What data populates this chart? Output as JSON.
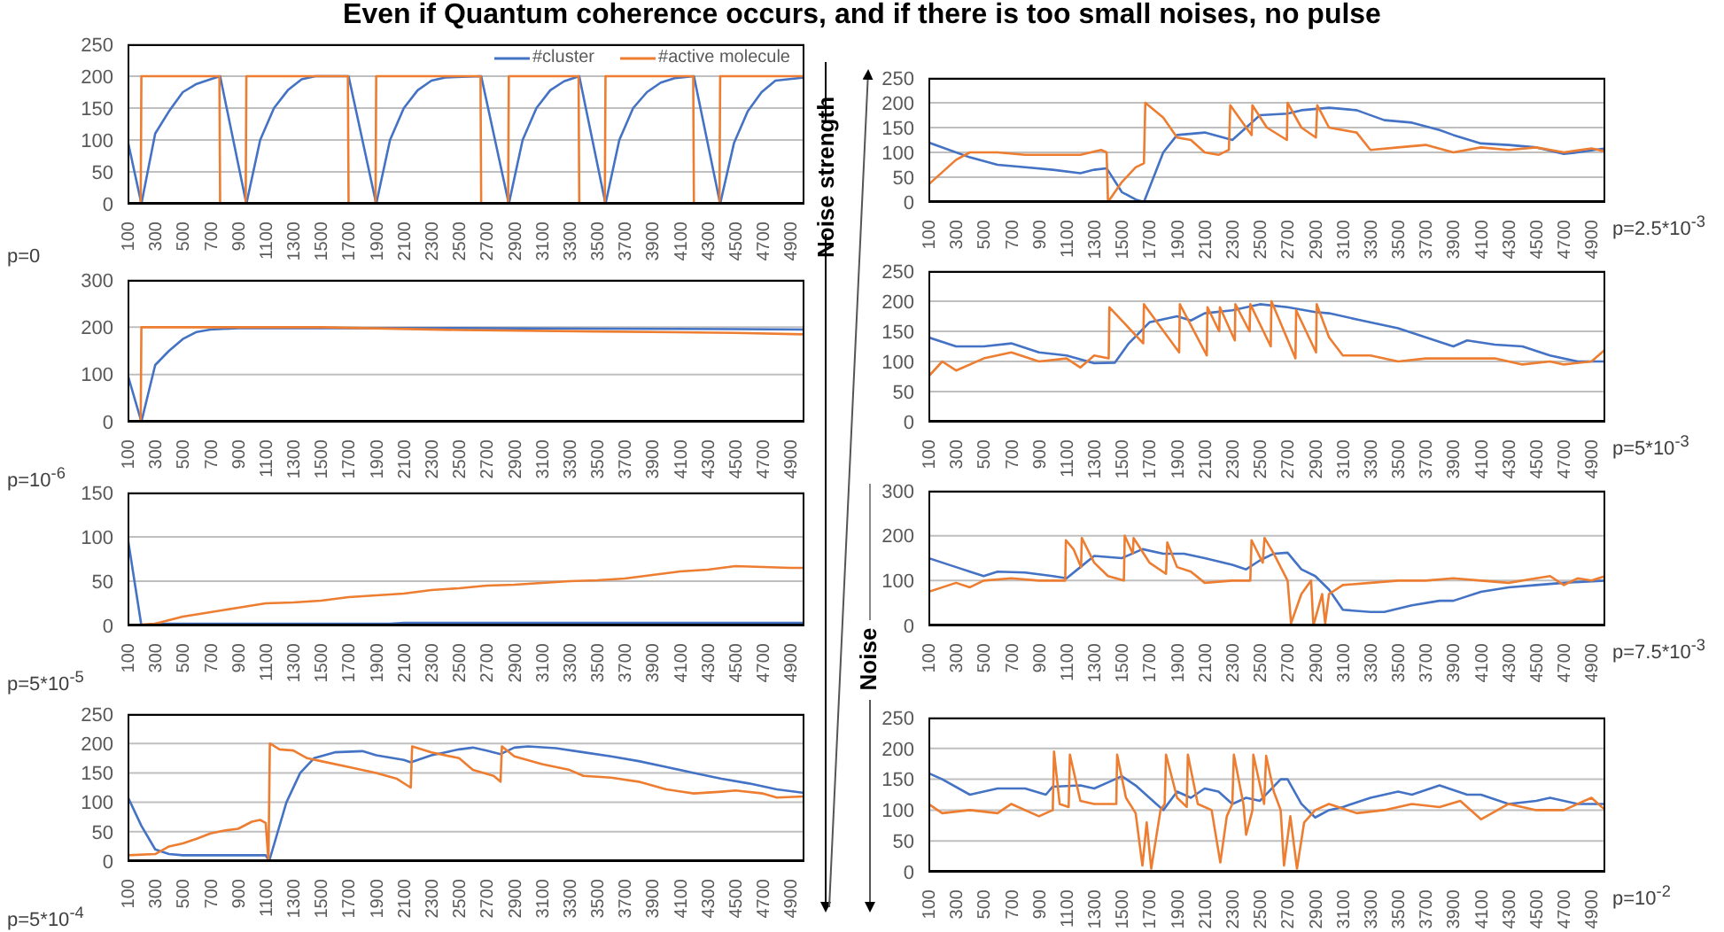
{
  "chart_data": [
    {
      "type": "line",
      "title": "Even if Quantum coherence occurs, and if there is too small noises, no pulse",
      "annotations": [
        "p=0",
        "Noise strength"
      ],
      "legend": "top right",
      "grid": "y",
      "xlim": [
        100,
        5000
      ],
      "xticks": [
        100,
        300,
        500,
        700,
        900,
        1100,
        1300,
        1500,
        1700,
        1900,
        2100,
        2300,
        2500,
        2700,
        2900,
        3100,
        3300,
        3500,
        3700,
        3900,
        4100,
        4300,
        4500,
        4700,
        4900
      ],
      "ylim": [
        0,
        250
      ],
      "yticks": [
        0,
        50,
        100,
        150,
        200,
        250
      ],
      "series": [
        {
          "name": "#cluster",
          "color": "#4472c4",
          "x": [
            100,
            200,
            300,
            400,
            500,
            600,
            700,
            770,
            960,
            1060,
            1160,
            1260,
            1360,
            1460,
            1700,
            1900,
            2000,
            2100,
            2200,
            2300,
            2400,
            2660,
            2860,
            2960,
            3060,
            3160,
            3260,
            3370,
            3560,
            3660,
            3760,
            3860,
            3960,
            4060,
            4200,
            4390,
            4490,
            4590,
            4690,
            4790,
            5000
          ],
          "values": [
            100,
            0,
            110,
            145,
            175,
            188,
            195,
            200,
            0,
            100,
            150,
            178,
            195,
            200,
            200,
            0,
            100,
            150,
            178,
            193,
            198,
            200,
            0,
            100,
            150,
            178,
            192,
            200,
            0,
            100,
            150,
            175,
            190,
            197,
            200,
            0,
            95,
            145,
            175,
            193,
            198
          ]
        },
        {
          "name": "#active molecule",
          "color": "#ed7d31",
          "x": [
            100,
            195,
            200,
            765,
            770,
            955,
            960,
            1695,
            1700,
            1895,
            1900,
            2655,
            2660,
            2855,
            2860,
            3365,
            3370,
            3555,
            3560,
            4195,
            4200,
            4385,
            4390,
            5000
          ],
          "values": [
            0,
            0,
            200,
            200,
            0,
            0,
            200,
            200,
            0,
            0,
            200,
            200,
            0,
            0,
            200,
            200,
            0,
            0,
            200,
            200,
            0,
            0,
            200,
            200
          ]
        }
      ]
    },
    {
      "type": "line",
      "annotations": [
        "p=10$^{-6}$"
      ],
      "grid": "y",
      "xlim": [
        100,
        5000
      ],
      "xticks": [
        100,
        300,
        500,
        700,
        900,
        1100,
        1300,
        1500,
        1700,
        1900,
        2100,
        2300,
        2500,
        2700,
        2900,
        3100,
        3300,
        3500,
        3700,
        3900,
        4100,
        4300,
        4500,
        4700,
        4900
      ],
      "ylim": [
        0,
        300
      ],
      "yticks": [
        0,
        100,
        200,
        300
      ],
      "series": [
        {
          "color": "#4472c4",
          "x": [
            100,
            200,
            300,
            400,
            500,
            600,
            700,
            900,
            1500,
            2500,
            3500,
            4500,
            5000
          ],
          "values": [
            100,
            0,
            120,
            150,
            175,
            190,
            195,
            198,
            198,
            198,
            197,
            196,
            195
          ]
        },
        {
          "color": "#ed7d31",
          "x": [
            100,
            195,
            200,
            1500,
            2500,
            3500,
            4500,
            5000
          ],
          "values": [
            0,
            0,
            200,
            200,
            194,
            191,
            188,
            185
          ]
        }
      ]
    },
    {
      "type": "line",
      "annotations": [
        "p=5*10$^{-5}$"
      ],
      "grid": "y",
      "xlim": [
        100,
        5000
      ],
      "xticks": [
        100,
        300,
        500,
        700,
        900,
        1100,
        1300,
        1500,
        1700,
        1900,
        2100,
        2300,
        2500,
        2700,
        2900,
        3100,
        3300,
        3500,
        3700,
        3900,
        4100,
        4300,
        4500,
        4700,
        4900
      ],
      "ylim": [
        0,
        150
      ],
      "yticks": [
        0,
        50,
        100,
        150
      ],
      "series": [
        {
          "color": "#4472c4",
          "x": [
            100,
            200,
            300,
            2000,
            2100,
            5000
          ],
          "values": [
            100,
            0,
            2,
            2,
            3,
            3
          ]
        },
        {
          "color": "#ed7d31",
          "x": [
            100,
            300,
            500,
            700,
            900,
            1100,
            1300,
            1500,
            1700,
            1900,
            2100,
            2300,
            2500,
            2700,
            2900,
            3100,
            3300,
            3500,
            3700,
            3900,
            4100,
            4300,
            4500,
            4700,
            4900,
            5000
          ],
          "values": [
            0,
            2,
            10,
            15,
            20,
            25,
            26,
            28,
            32,
            34,
            36,
            40,
            42,
            45,
            46,
            48,
            50,
            51,
            53,
            57,
            61,
            63,
            67,
            66,
            65,
            65
          ]
        }
      ]
    },
    {
      "type": "line",
      "annotations": [
        "p=5*10$^{-4}$"
      ],
      "grid": "y",
      "xlim": [
        100,
        5000
      ],
      "xticks": [
        100,
        300,
        500,
        700,
        900,
        1100,
        1300,
        1500,
        1700,
        1900,
        2100,
        2300,
        2500,
        2700,
        2900,
        3100,
        3300,
        3500,
        3700,
        3900,
        4100,
        4300,
        4500,
        4700,
        4900
      ],
      "ylim": [
        0,
        250
      ],
      "yticks": [
        0,
        50,
        100,
        150,
        200,
        250
      ],
      "series": [
        {
          "color": "#4472c4",
          "x": [
            100,
            200,
            300,
            400,
            500,
            1100,
            1125,
            1250,
            1350,
            1450,
            1600,
            1800,
            1900,
            2100,
            2150,
            2300,
            2400,
            2500,
            2600,
            2700,
            2800,
            2900,
            3000,
            3200,
            3400,
            3600,
            3800,
            4000,
            4200,
            4400,
            4600,
            4800,
            5000
          ],
          "values": [
            110,
            60,
            20,
            12,
            10,
            10,
            0,
            100,
            150,
            175,
            185,
            187,
            180,
            172,
            168,
            180,
            185,
            190,
            193,
            188,
            182,
            193,
            195,
            192,
            185,
            178,
            170,
            160,
            150,
            140,
            132,
            122,
            116
          ]
        },
        {
          "color": "#ed7d31",
          "x": [
            100,
            300,
            400,
            500,
            600,
            700,
            800,
            900,
            1000,
            1060,
            1100,
            1120,
            1130,
            1200,
            1300,
            1400,
            1500,
            1700,
            1900,
            2050,
            2150,
            2160,
            2300,
            2500,
            2600,
            2750,
            2800,
            2810,
            2900,
            3100,
            3300,
            3400,
            3600,
            3800,
            4000,
            4200,
            4400,
            4500,
            4700,
            4800,
            5000
          ],
          "values": [
            10,
            12,
            25,
            30,
            38,
            47,
            52,
            55,
            67,
            70,
            65,
            0,
            200,
            190,
            188,
            175,
            170,
            160,
            150,
            140,
            125,
            195,
            185,
            175,
            155,
            145,
            135,
            195,
            178,
            165,
            155,
            145,
            142,
            135,
            122,
            115,
            118,
            120,
            115,
            108,
            110
          ]
        }
      ]
    },
    {
      "type": "line",
      "annotations": [
        "p=2.5*10$^{-3}$"
      ],
      "grid": "y",
      "xlim": [
        100,
        5000
      ],
      "xticks": [
        100,
        300,
        500,
        700,
        900,
        1100,
        1300,
        1500,
        1700,
        1900,
        2100,
        2300,
        2500,
        2700,
        2900,
        3100,
        3300,
        3500,
        3700,
        3900,
        4100,
        4300,
        4500,
        4700,
        4900
      ],
      "ylim": [
        0,
        250
      ],
      "yticks": [
        0,
        50,
        100,
        150,
        200,
        250
      ],
      "series": [
        {
          "color": "#4472c4",
          "x": [
            100,
            400,
            600,
            800,
            1000,
            1200,
            1300,
            1390,
            1500,
            1600,
            1660,
            1800,
            1900,
            2100,
            2300,
            2400,
            2500,
            2700,
            2800,
            3000,
            3200,
            3400,
            3600,
            3800,
            3900,
            4100,
            4300,
            4500,
            4700,
            4800,
            5000
          ],
          "values": [
            120,
            90,
            75,
            70,
            65,
            58,
            65,
            68,
            20,
            5,
            0,
            100,
            135,
            140,
            125,
            150,
            175,
            178,
            185,
            190,
            185,
            165,
            160,
            145,
            135,
            118,
            115,
            110,
            97,
            100,
            108
          ]
        },
        {
          "color": "#ed7d31",
          "x": [
            100,
            200,
            300,
            400,
            600,
            800,
            1000,
            1200,
            1350,
            1390,
            1400,
            1500,
            1600,
            1660,
            1670,
            1800,
            1900,
            2000,
            2100,
            2200,
            2275,
            2285,
            2400,
            2440,
            2445,
            2550,
            2695,
            2700,
            2800,
            2905,
            2915,
            3000,
            3200,
            3300,
            3500,
            3700,
            3900,
            4100,
            4300,
            4500,
            4700,
            4900,
            5000
          ],
          "values": [
            35,
            60,
            85,
            100,
            100,
            95,
            95,
            95,
            105,
            100,
            0,
            40,
            70,
            78,
            200,
            170,
            130,
            125,
            100,
            95,
            105,
            195,
            150,
            135,
            195,
            150,
            125,
            200,
            150,
            130,
            195,
            150,
            140,
            105,
            110,
            115,
            100,
            110,
            105,
            110,
            100,
            108,
            102
          ]
        }
      ]
    },
    {
      "type": "line",
      "annotations": [
        "p=5*10$^{-3}$"
      ],
      "grid": "y",
      "xlim": [
        100,
        5000
      ],
      "xticks": [
        100,
        300,
        500,
        700,
        900,
        1100,
        1300,
        1500,
        1700,
        1900,
        2100,
        2300,
        2500,
        2700,
        2900,
        3100,
        3300,
        3500,
        3700,
        3900,
        4100,
        4300,
        4500,
        4700,
        4900
      ],
      "ylim": [
        0,
        250
      ],
      "yticks": [
        0,
        50,
        100,
        150,
        200,
        250
      ],
      "series": [
        {
          "color": "#4472c4",
          "x": [
            100,
            300,
            500,
            700,
            900,
            1100,
            1300,
            1450,
            1550,
            1700,
            1900,
            2000,
            2100,
            2300,
            2500,
            2700,
            2900,
            3000,
            3200,
            3500,
            3700,
            3900,
            4000,
            4200,
            4400,
            4600,
            4800,
            5000
          ],
          "values": [
            140,
            125,
            125,
            130,
            115,
            110,
            97,
            98,
            130,
            165,
            175,
            168,
            180,
            185,
            195,
            190,
            182,
            180,
            170,
            155,
            140,
            125,
            135,
            128,
            125,
            110,
            100,
            100
          ]
        },
        {
          "color": "#ed7d31",
          "x": [
            100,
            200,
            300,
            500,
            700,
            900,
            1100,
            1200,
            1300,
            1405,
            1410,
            1655,
            1660,
            1915,
            1920,
            2115,
            2120,
            2205,
            2210,
            2318,
            2322,
            2425,
            2430,
            2578,
            2583,
            2757,
            2762,
            2906,
            2911,
            3000,
            3100,
            3300,
            3500,
            3700,
            4000,
            4200,
            4400,
            4600,
            4700,
            4900,
            5000
          ],
          "values": [
            75,
            100,
            85,
            105,
            115,
            100,
            105,
            90,
            110,
            105,
            190,
            130,
            195,
            115,
            195,
            110,
            190,
            150,
            190,
            135,
            195,
            150,
            195,
            125,
            200,
            105,
            185,
            115,
            195,
            140,
            110,
            110,
            100,
            105,
            105,
            105,
            95,
            100,
            95,
            100,
            120
          ]
        }
      ]
    },
    {
      "type": "line",
      "annotations": [
        "p=7.5*10$^{-3}$",
        "Noise"
      ],
      "grid": "y",
      "xlim": [
        100,
        5000
      ],
      "xticks": [
        100,
        300,
        500,
        700,
        900,
        1100,
        1300,
        1500,
        1700,
        1900,
        2100,
        2300,
        2500,
        2700,
        2900,
        3100,
        3300,
        3500,
        3700,
        3900,
        4100,
        4300,
        4500,
        4700,
        4900
      ],
      "ylim": [
        0,
        300
      ],
      "yticks": [
        0,
        100,
        200,
        300
      ],
      "series": [
        {
          "color": "#4472c4",
          "x": [
            100,
            300,
            400,
            500,
            600,
            800,
            1000,
            1100,
            1200,
            1300,
            1500,
            1650,
            1800,
            1950,
            2100,
            2300,
            2400,
            2500,
            2600,
            2700,
            2800,
            2900,
            3000,
            3100,
            3300,
            3400,
            3600,
            3800,
            3900,
            4100,
            4300,
            4500,
            4700,
            5000
          ],
          "values": [
            150,
            130,
            120,
            110,
            120,
            118,
            110,
            105,
            130,
            155,
            150,
            170,
            160,
            160,
            150,
            135,
            125,
            145,
            160,
            162,
            125,
            110,
            80,
            35,
            30,
            30,
            45,
            55,
            55,
            75,
            85,
            90,
            95,
            100
          ]
        },
        {
          "color": "#ed7d31",
          "x": [
            100,
            300,
            400,
            500,
            700,
            900,
            1090,
            1095,
            1150,
            1205,
            1210,
            1300,
            1400,
            1515,
            1521,
            1580,
            1585,
            1700,
            1820,
            1829,
            1900,
            2000,
            2100,
            2300,
            2430,
            2439,
            2520,
            2533,
            2600,
            2700,
            2725,
            2800,
            2870,
            2887,
            2950,
            2972,
            3000,
            3100,
            3300,
            3500,
            3700,
            3900,
            4100,
            4300,
            4500,
            4600,
            4700,
            4800,
            4900,
            5000
          ],
          "values": [
            75,
            95,
            85,
            100,
            105,
            100,
            100,
            190,
            170,
            130,
            195,
            140,
            110,
            100,
            200,
            160,
            195,
            140,
            115,
            185,
            130,
            120,
            95,
            100,
            100,
            190,
            140,
            195,
            160,
            100,
            5,
            70,
            100,
            0,
            70,
            5,
            70,
            90,
            95,
            100,
            100,
            105,
            100,
            95,
            105,
            110,
            90,
            105,
            100,
            110
          ]
        }
      ]
    },
    {
      "type": "line",
      "annotations": [
        "p=10$^{-2}$"
      ],
      "grid": "y",
      "xlim": [
        100,
        5000
      ],
      "xticks": [
        100,
        300,
        500,
        700,
        900,
        1100,
        1300,
        1500,
        1700,
        1900,
        2100,
        2300,
        2500,
        2700,
        2900,
        3100,
        3300,
        3500,
        3700,
        3900,
        4100,
        4300,
        4500,
        4700,
        4900
      ],
      "ylim": [
        0,
        250
      ],
      "yticks": [
        0,
        50,
        100,
        150,
        200,
        250
      ],
      "series": [
        {
          "color": "#4472c4",
          "x": [
            100,
            200,
            400,
            600,
            800,
            950,
            1000,
            1200,
            1300,
            1400,
            1500,
            1600,
            1750,
            1800,
            1900,
            2000,
            2100,
            2200,
            2300,
            2400,
            2500,
            2650,
            2700,
            2800,
            2900,
            3000,
            3100,
            3300,
            3500,
            3600,
            3800,
            4000,
            4100,
            4300,
            4500,
            4600,
            4800,
            5000
          ],
          "values": [
            160,
            150,
            125,
            135,
            135,
            125,
            138,
            140,
            135,
            145,
            155,
            140,
            110,
            100,
            130,
            120,
            135,
            130,
            110,
            120,
            115,
            150,
            150,
            110,
            88,
            100,
            105,
            120,
            130,
            125,
            140,
            125,
            125,
            110,
            115,
            120,
            110,
            110
          ]
        },
        {
          "color": "#ed7d31",
          "x": [
            100,
            200,
            400,
            600,
            700,
            900,
            1000,
            1009,
            1050,
            1115,
            1124,
            1200,
            1300,
            1460,
            1466,
            1530,
            1600,
            1649,
            1680,
            1713,
            1780,
            1810,
            1820,
            1900,
            1970,
            1978,
            2050,
            2150,
            2213,
            2260,
            2300,
            2311,
            2380,
            2400,
            2446,
            2452,
            2530,
            2545,
            2600,
            2650,
            2674,
            2720,
            2768,
            2820,
            2900,
            3000,
            3200,
            3400,
            3600,
            3800,
            3950,
            4100,
            4300,
            4500,
            4700,
            4900,
            5000
          ],
          "values": [
            110,
            95,
            100,
            95,
            110,
            90,
            100,
            195,
            110,
            105,
            190,
            115,
            110,
            110,
            190,
            120,
            95,
            10,
            80,
            5,
            100,
            110,
            190,
            120,
            105,
            190,
            110,
            100,
            15,
            90,
            110,
            190,
            110,
            60,
            100,
            190,
            110,
            188,
            130,
            100,
            10,
            90,
            5,
            80,
            100,
            110,
            95,
            100,
            110,
            105,
            115,
            85,
            110,
            100,
            100,
            120,
            100
          ]
        }
      ]
    }
  ]
}
